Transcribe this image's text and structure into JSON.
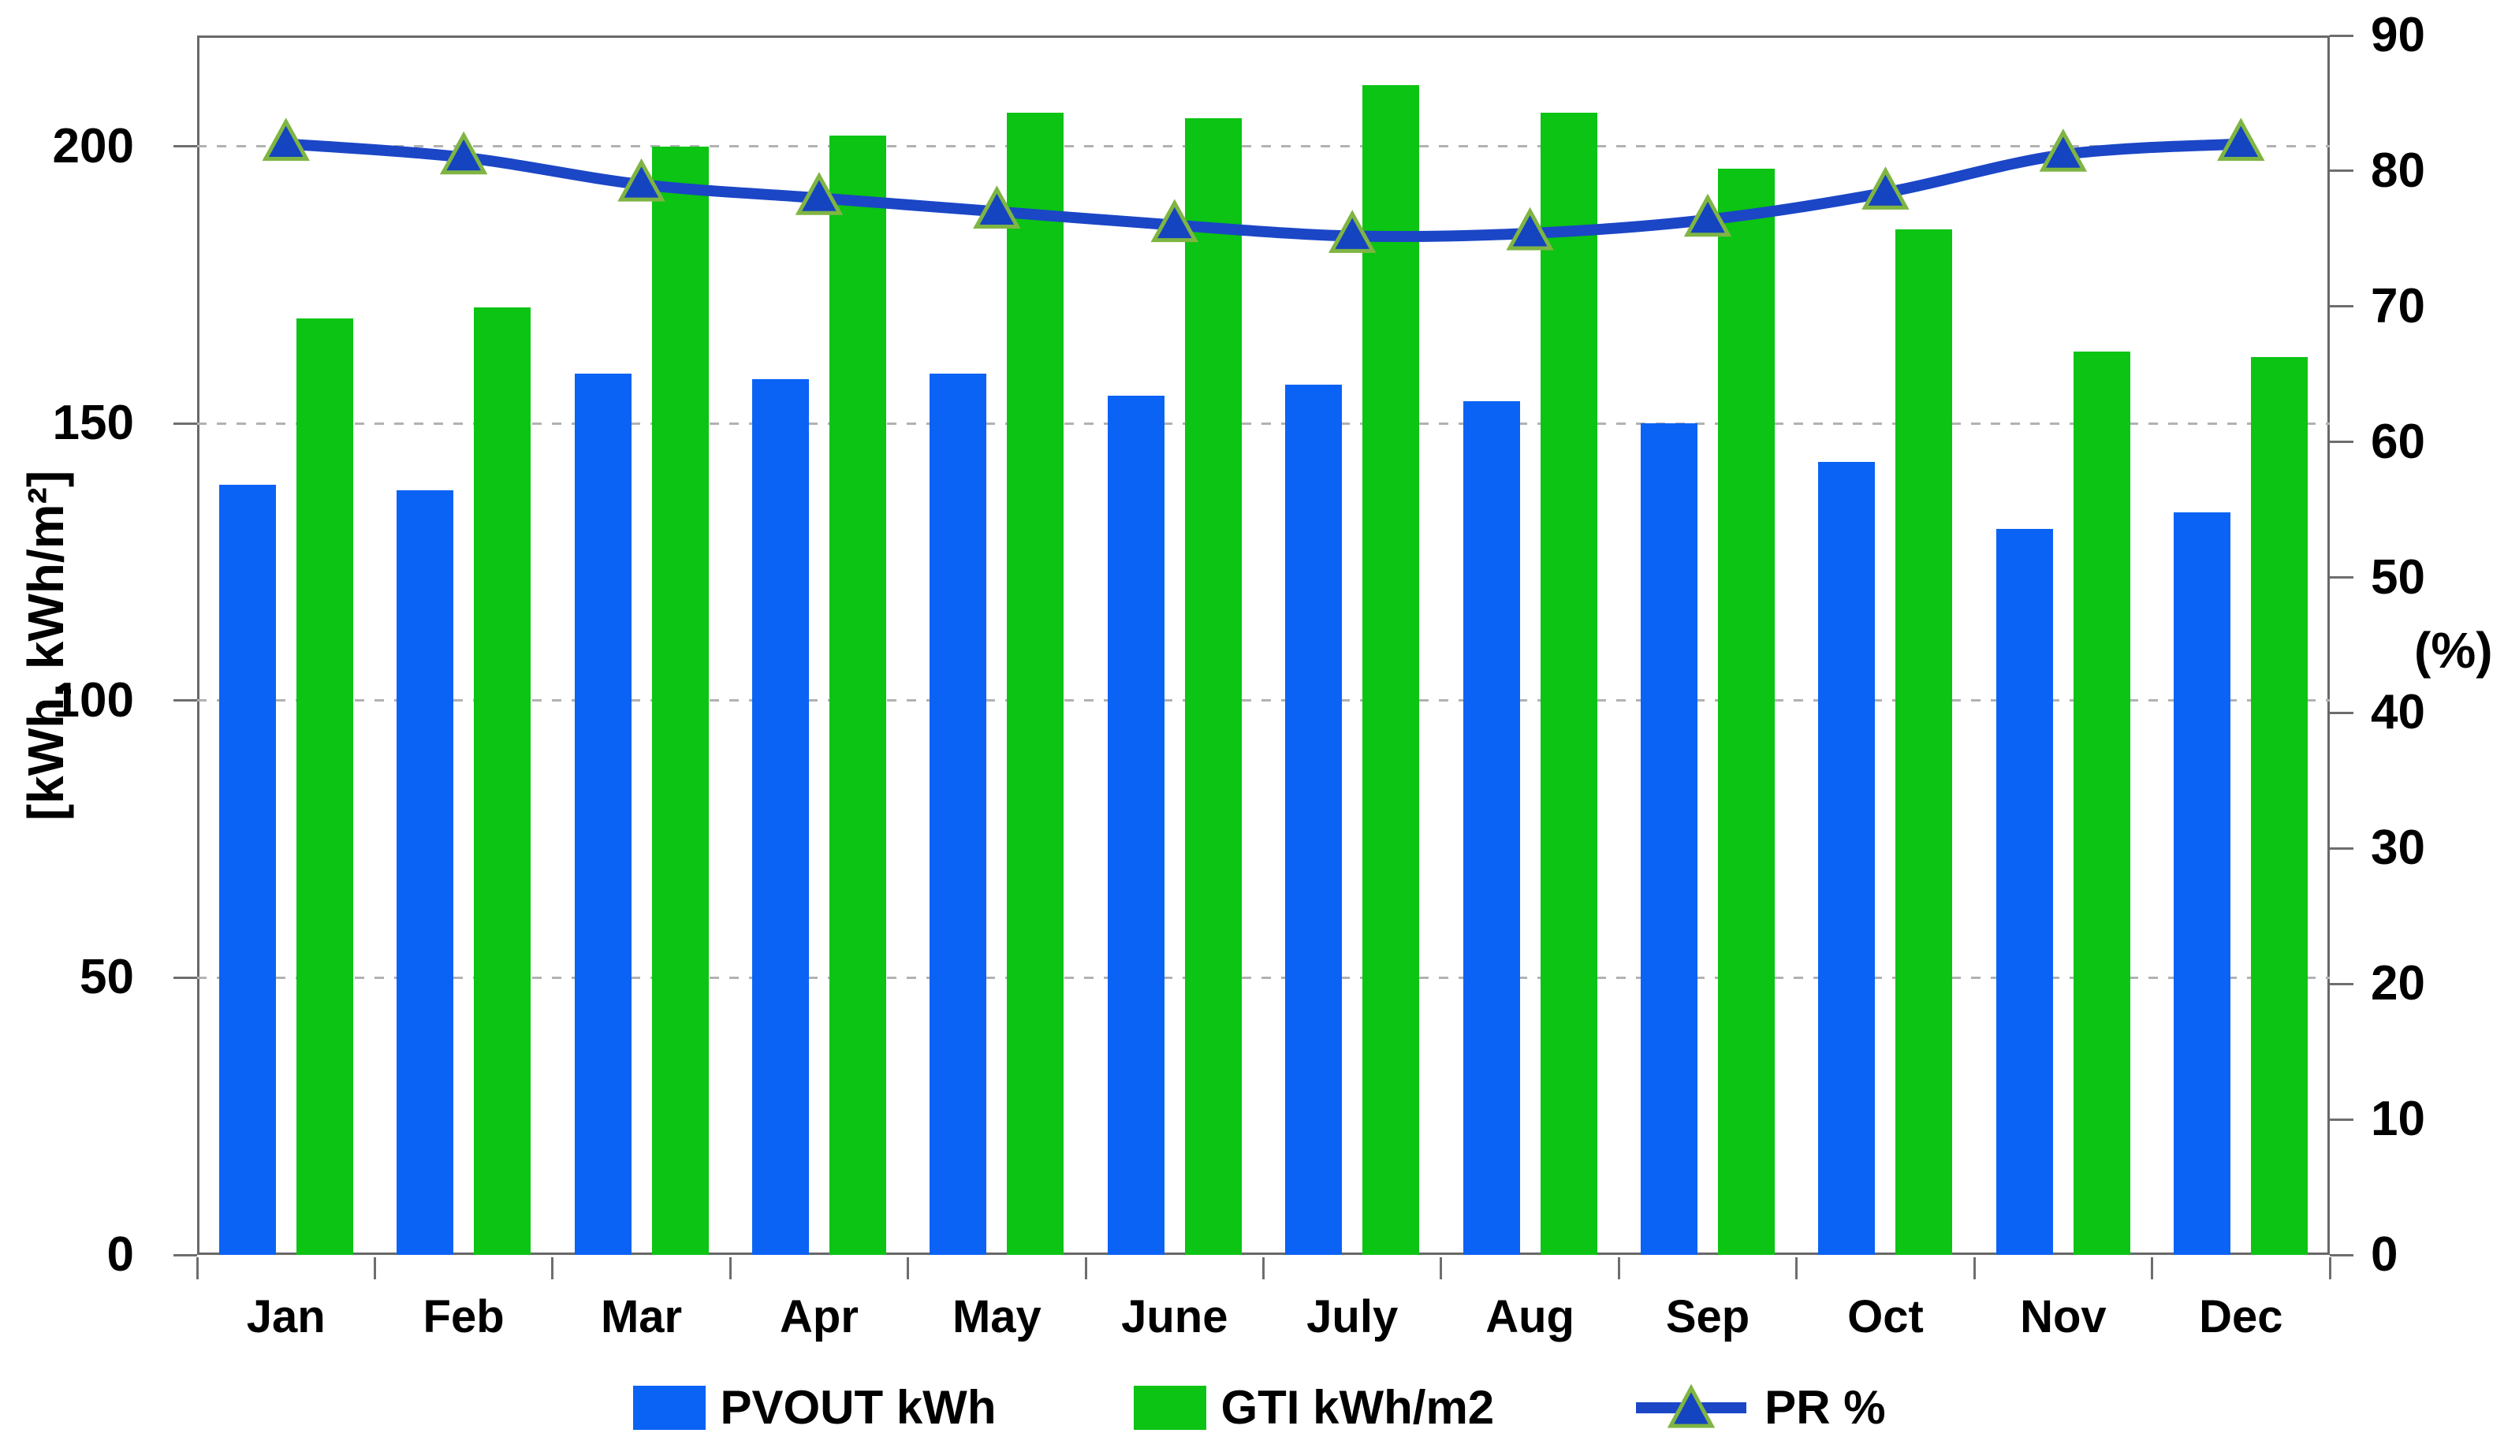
{
  "chart_data": {
    "type": "combo",
    "categories": [
      "Jan",
      "Feb",
      "Mar",
      "Apr",
      "May",
      "June",
      "July",
      "Aug",
      "Sep",
      "Oct",
      "Nov",
      "Dec"
    ],
    "series": [
      {
        "name": "PVOUT kWh",
        "type": "bar",
        "axis": "left",
        "color": "#0b63f5",
        "values": [
          139,
          138,
          159,
          158,
          159,
          155,
          157,
          154,
          150,
          143,
          131,
          134
        ]
      },
      {
        "name": "GTI kWh/m2",
        "type": "bar",
        "axis": "left",
        "color": "#0bc413",
        "values": [
          169,
          171,
          200,
          202,
          206,
          205,
          211,
          206,
          196,
          185,
          163,
          162
        ]
      },
      {
        "name": "PR %",
        "type": "line",
        "axis": "right",
        "color": "#1b46c6",
        "marker": "triangle",
        "marker_fill": "#1444bf",
        "marker_edge": "#7fb543",
        "values": [
          82,
          81,
          79,
          78,
          77,
          76,
          75.2,
          75.4,
          76.4,
          78.4,
          81.2,
          82
        ]
      }
    ],
    "left_axis": {
      "title": "[kWh, kWh/m²]",
      "min": 0,
      "max": 220,
      "tick_step": 50,
      "ticks": [
        0,
        50,
        100,
        150,
        200
      ]
    },
    "right_axis": {
      "title": "(%)",
      "min": 0,
      "max": 90,
      "tick_step": 10,
      "ticks": [
        0,
        10,
        20,
        30,
        40,
        50,
        60,
        70,
        80,
        90
      ]
    },
    "grid": {
      "horizontal": "dashed",
      "color": "#b2b2b2",
      "at_left_ticks": [
        50,
        100,
        150,
        200
      ]
    },
    "legend_position": "bottom",
    "title": ""
  }
}
